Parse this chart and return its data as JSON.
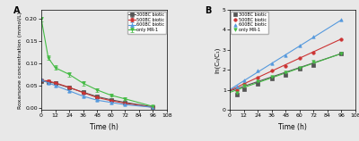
{
  "panel_A": {
    "title": "A",
    "xlabel": "Time (h)",
    "ylabel": "Roxarsone concentration (mmol/L)",
    "xlim": [
      0,
      108
    ],
    "ylim": [
      -0.005,
      0.22
    ],
    "xticks": [
      0,
      12,
      24,
      36,
      48,
      60,
      72,
      84,
      96,
      108
    ],
    "yticks": [
      0.0,
      0.05,
      0.1,
      0.15,
      0.2
    ],
    "series": [
      {
        "label": "300BC biotic",
        "color": "#555555",
        "marker": "s",
        "x": [
          0,
          6,
          12,
          24,
          36,
          48,
          60,
          72,
          96
        ],
        "y": [
          0.06,
          0.058,
          0.055,
          0.045,
          0.035,
          0.025,
          0.018,
          0.012,
          0.002
        ],
        "yerr": [
          0.003,
          0.003,
          0.003,
          0.003,
          0.003,
          0.002,
          0.002,
          0.002,
          0.001
        ]
      },
      {
        "label": "500BC biotic",
        "color": "#cc3333",
        "marker": "o",
        "x": [
          0,
          6,
          12,
          24,
          36,
          48,
          60,
          72,
          96
        ],
        "y": [
          0.062,
          0.06,
          0.056,
          0.046,
          0.034,
          0.023,
          0.016,
          0.01,
          0.001
        ],
        "yerr": [
          0.003,
          0.003,
          0.003,
          0.003,
          0.003,
          0.002,
          0.002,
          0.002,
          0.001
        ]
      },
      {
        "label": "600BC biotic",
        "color": "#5599dd",
        "marker": "^",
        "x": [
          0,
          6,
          12,
          24,
          36,
          48,
          60,
          72,
          96
        ],
        "y": [
          0.063,
          0.056,
          0.05,
          0.038,
          0.026,
          0.017,
          0.012,
          0.007,
          0.001
        ],
        "yerr": [
          0.003,
          0.003,
          0.003,
          0.003,
          0.003,
          0.002,
          0.002,
          0.002,
          0.001
        ]
      },
      {
        "label": "only MR-1",
        "color": "#44bb44",
        "marker": "v",
        "x": [
          0,
          6,
          12,
          24,
          36,
          48,
          60,
          72,
          96
        ],
        "y": [
          0.2,
          0.112,
          0.09,
          0.075,
          0.055,
          0.04,
          0.028,
          0.02,
          0.003
        ],
        "yerr": [
          0.005,
          0.005,
          0.005,
          0.005,
          0.005,
          0.004,
          0.003,
          0.003,
          0.001
        ]
      }
    ]
  },
  "panel_B": {
    "title": "B",
    "xlabel": "Time (h)",
    "ylabel": "ln(C₀/C₁)",
    "xlim": [
      0,
      108
    ],
    "ylim": [
      0.0,
      5.0
    ],
    "xticks": [
      0,
      12,
      24,
      36,
      48,
      60,
      72,
      84,
      96,
      108
    ],
    "yticks": [
      0.0,
      1.0,
      2.0,
      3.0,
      4.0,
      5.0
    ],
    "series": [
      {
        "label": "300BC biotic",
        "color": "#555555",
        "marker": "s",
        "x": [
          6,
          12,
          24,
          36,
          48,
          60,
          72,
          96
        ],
        "y": [
          0.75,
          1.05,
          1.3,
          1.55,
          1.75,
          2.05,
          2.22,
          2.82
        ],
        "fit_x": [
          0,
          96
        ],
        "fit_y": [
          0.95,
          2.82
        ]
      },
      {
        "label": "500BC biotic",
        "color": "#cc3333",
        "marker": "o",
        "x": [
          6,
          12,
          24,
          36,
          48,
          60,
          72,
          96
        ],
        "y": [
          1.0,
          1.3,
          1.6,
          1.95,
          2.2,
          2.6,
          2.88,
          3.55
        ],
        "fit_x": [
          0,
          96
        ],
        "fit_y": [
          0.98,
          3.55
        ]
      },
      {
        "label": "600BC biotic",
        "color": "#5599dd",
        "marker": "^",
        "x": [
          6,
          12,
          24,
          36,
          48,
          60,
          72,
          96
        ],
        "y": [
          1.15,
          1.5,
          1.95,
          2.35,
          2.75,
          3.2,
          3.65,
          4.5
        ],
        "fit_x": [
          0,
          96
        ],
        "fit_y": [
          1.02,
          4.5
        ]
      },
      {
        "label": "only MR-1",
        "color": "#44bb44",
        "marker": "v",
        "x": [
          6,
          12,
          24,
          36,
          48,
          60,
          72,
          96
        ],
        "y": [
          0.85,
          1.2,
          1.42,
          1.68,
          1.9,
          2.12,
          2.4,
          2.82
        ],
        "fit_x": [
          0,
          96
        ],
        "fit_y": [
          0.88,
          2.82
        ]
      }
    ]
  },
  "bg_color": "#e8e8e8",
  "fig_bg": "#e8e8e8"
}
